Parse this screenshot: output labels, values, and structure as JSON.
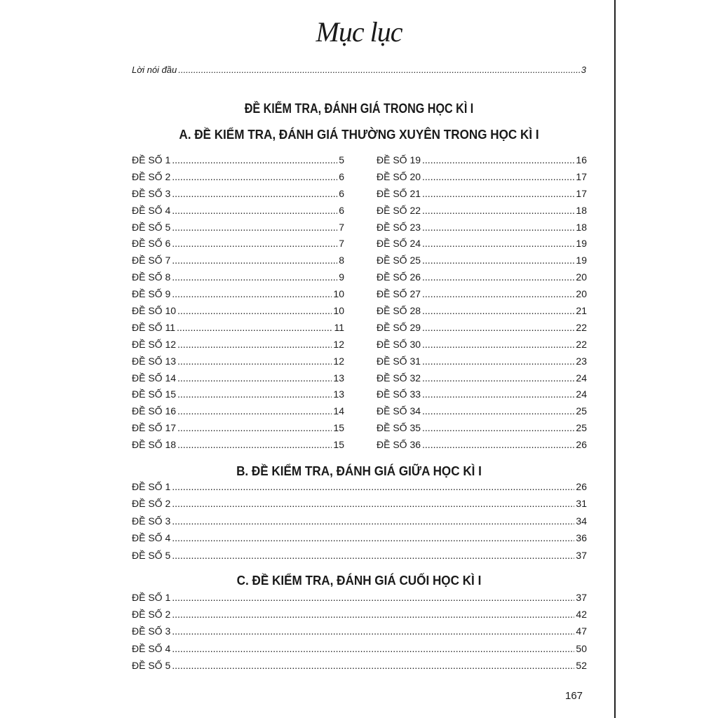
{
  "title": "Mục lục",
  "intro": {
    "label": "Lời nói đầu",
    "page": "3"
  },
  "heading": "ĐỀ KIỂM TRA, ĐÁNH GIÁ TRONG HỌC KÌ I",
  "sections": [
    {
      "title": "A. ĐỀ KIỂM TRA, ĐÁNH GIÁ THƯỜNG XUYÊN TRONG HỌC KÌ I",
      "left": [
        {
          "label": "ĐỀ SỐ 1",
          "page": "5"
        },
        {
          "label": "ĐỀ SỐ 2",
          "page": "6"
        },
        {
          "label": "ĐỀ SỐ 3",
          "page": "6"
        },
        {
          "label": "ĐỀ SỐ 4",
          "page": "6"
        },
        {
          "label": "ĐỀ SỐ 5",
          "page": "7"
        },
        {
          "label": "ĐỀ SỐ 6",
          "page": "7"
        },
        {
          "label": "ĐỀ SỐ 7",
          "page": "8"
        },
        {
          "label": "ĐỀ SỐ 8",
          "page": "9"
        },
        {
          "label": "ĐỀ SỐ 9",
          "page": "10"
        },
        {
          "label": "ĐỀ SỐ 10",
          "page": "10"
        },
        {
          "label": "ĐỀ SỐ 11",
          "page": "11"
        },
        {
          "label": "ĐỀ SỐ 12",
          "page": "12"
        },
        {
          "label": "ĐỀ SỐ 13",
          "page": "12"
        },
        {
          "label": "ĐỀ SỐ 14",
          "page": "13"
        },
        {
          "label": "ĐỀ SỐ 15",
          "page": "13"
        },
        {
          "label": "ĐỀ SỐ 16",
          "page": "14"
        },
        {
          "label": "ĐỀ SỐ 17",
          "page": "15"
        },
        {
          "label": "ĐỀ SỐ 18",
          "page": "15"
        }
      ],
      "right": [
        {
          "label": "ĐỀ SỐ 19",
          "page": "16"
        },
        {
          "label": "ĐỀ SỐ 20",
          "page": "17"
        },
        {
          "label": "ĐỀ SỐ 21",
          "page": "17"
        },
        {
          "label": "ĐỀ SỐ 22",
          "page": "18"
        },
        {
          "label": "ĐỀ SỐ 23",
          "page": "18"
        },
        {
          "label": "ĐỀ SỐ 24",
          "page": "19"
        },
        {
          "label": "ĐỀ SỐ 25",
          "page": "19"
        },
        {
          "label": "ĐỀ SỐ 26",
          "page": "20"
        },
        {
          "label": "ĐỀ SỐ 27",
          "page": "20"
        },
        {
          "label": "ĐỀ SỐ 28",
          "page": "21"
        },
        {
          "label": "ĐỀ SỐ 29",
          "page": "22"
        },
        {
          "label": "ĐỀ SỐ 30",
          "page": "22"
        },
        {
          "label": "ĐỀ SỐ 31",
          "page": "23"
        },
        {
          "label": "ĐỀ SỐ 32",
          "page": "24"
        },
        {
          "label": "ĐỀ SỐ 33",
          "page": "24"
        },
        {
          "label": "ĐỀ SỐ 34",
          "page": "25"
        },
        {
          "label": "ĐỀ SỐ 35",
          "page": "25"
        },
        {
          "label": "ĐỀ SỐ 36",
          "page": "26"
        }
      ]
    },
    {
      "title": "B. ĐỀ KIỂM TRA, ĐÁNH GIÁ GIỮA HỌC KÌ I",
      "items": [
        {
          "label": "ĐỀ SỐ 1",
          "page": "26"
        },
        {
          "label": "ĐỀ SỐ 2",
          "page": "31"
        },
        {
          "label": "ĐỀ SỐ 3",
          "page": "34"
        },
        {
          "label": "ĐỀ SỐ 4",
          "page": "36"
        },
        {
          "label": "ĐỀ SỐ 5",
          "page": "37"
        }
      ]
    },
    {
      "title": "C. ĐỀ KIỂM TRA, ĐÁNH GIÁ CUỐI HỌC KÌ I",
      "items": [
        {
          "label": "ĐỀ SỐ 1",
          "page": "37"
        },
        {
          "label": "ĐỀ SỐ 2",
          "page": "42"
        },
        {
          "label": "ĐỀ SỐ 3",
          "page": "47"
        },
        {
          "label": "ĐỀ SỐ 4",
          "page": "50"
        },
        {
          "label": "ĐỀ SỐ 5",
          "page": "52"
        }
      ]
    }
  ],
  "page_number": "167"
}
